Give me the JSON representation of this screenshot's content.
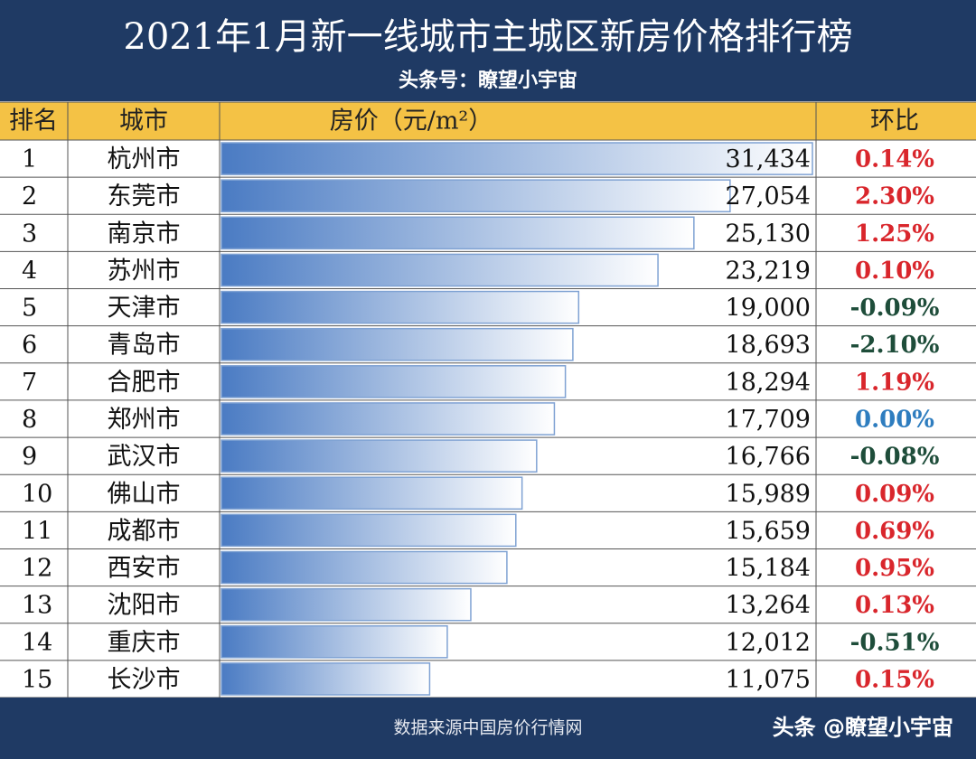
{
  "header": {
    "title": "2021年1月新一线城市主城区新房价格排行榜",
    "subtitle": "头条号：瞭望小宇宙"
  },
  "table": {
    "columns": [
      "排名",
      "城市",
      "房价（元/m²）",
      "环比"
    ],
    "rows": [
      {
        "rank": 1,
        "city": "杭州市",
        "price": 31434,
        "price_label": "31,434",
        "change": "0.14%",
        "change_color": "#d9262c"
      },
      {
        "rank": 2,
        "city": "东莞市",
        "price": 27054,
        "price_label": "27,054",
        "change": "2.30%",
        "change_color": "#d9262c"
      },
      {
        "rank": 3,
        "city": "南京市",
        "price": 25130,
        "price_label": "25,130",
        "change": "1.25%",
        "change_color": "#d9262c"
      },
      {
        "rank": 4,
        "city": "苏州市",
        "price": 23219,
        "price_label": "23,219",
        "change": "0.10%",
        "change_color": "#d9262c"
      },
      {
        "rank": 5,
        "city": "天津市",
        "price": 19000,
        "price_label": "19,000",
        "change": "-0.09%",
        "change_color": "#1e4d3a"
      },
      {
        "rank": 6,
        "city": "青岛市",
        "price": 18693,
        "price_label": "18,693",
        "change": "-2.10%",
        "change_color": "#1e4d3a"
      },
      {
        "rank": 7,
        "city": "合肥市",
        "price": 18294,
        "price_label": "18,294",
        "change": "1.19%",
        "change_color": "#d9262c"
      },
      {
        "rank": 8,
        "city": "郑州市",
        "price": 17709,
        "price_label": "17,709",
        "change": "0.00%",
        "change_color": "#2e7dbf"
      },
      {
        "rank": 9,
        "city": "武汉市",
        "price": 16766,
        "price_label": "16,766",
        "change": "-0.08%",
        "change_color": "#1e4d3a"
      },
      {
        "rank": 10,
        "city": "佛山市",
        "price": 15989,
        "price_label": "15,989",
        "change": "0.09%",
        "change_color": "#d9262c"
      },
      {
        "rank": 11,
        "city": "成都市",
        "price": 15659,
        "price_label": "15,659",
        "change": "0.69%",
        "change_color": "#d9262c"
      },
      {
        "rank": 12,
        "city": "西安市",
        "price": 15184,
        "price_label": "15,184",
        "change": "0.95%",
        "change_color": "#d9262c"
      },
      {
        "rank": 13,
        "city": "沈阳市",
        "price": 13264,
        "price_label": "13,264",
        "change": "0.13%",
        "change_color": "#d9262c"
      },
      {
        "rank": 14,
        "city": "重庆市",
        "price": 12012,
        "price_label": "12,012",
        "change": "-0.51%",
        "change_color": "#1e4d3a"
      },
      {
        "rank": 15,
        "city": "长沙市",
        "price": 11075,
        "price_label": "11,075",
        "change": "0.15%",
        "change_color": "#d9262c"
      }
    ]
  },
  "footer": {
    "source": "数据来源中国房价行情网",
    "watermark": "头条 @瞭望小宇宙"
  }
}
